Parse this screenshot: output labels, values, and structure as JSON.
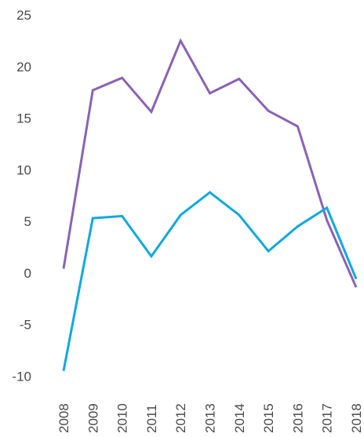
{
  "chart_data": {
    "type": "line",
    "title": "",
    "xlabel": "",
    "ylabel": "",
    "categories": [
      "2008",
      "2009",
      "2010",
      "2011",
      "2012",
      "2013",
      "2014",
      "2015",
      "2016",
      "2017",
      "2018"
    ],
    "ylim": [
      -10,
      25
    ],
    "yticks": [
      -10,
      -5,
      0,
      5,
      10,
      15,
      20,
      25
    ],
    "grid": false,
    "series": [
      {
        "color": "#8b62b4",
        "values": [
          0.4,
          17.7,
          18.9,
          15.6,
          22.5,
          17.4,
          18.8,
          15.7,
          14.2,
          5.1,
          -1.4
        ]
      },
      {
        "color": "#0fa9e0",
        "values": [
          -9.5,
          5.3,
          5.5,
          1.6,
          5.6,
          7.8,
          5.6,
          2.1,
          4.5,
          6.3,
          -0.6
        ]
      }
    ]
  }
}
